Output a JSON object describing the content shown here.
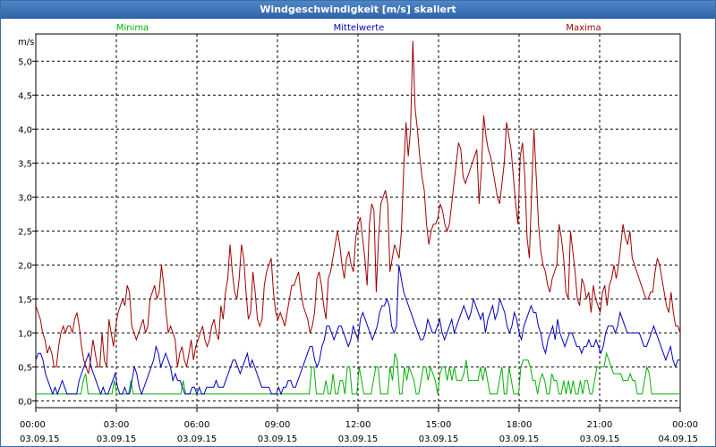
{
  "window": {
    "title": "Windgeschwindigkeit [m/s] skaliert"
  },
  "chart_data": {
    "type": "line",
    "title": "Windgeschwindigkeit [m/s] skaliert",
    "ylabel": "m/s",
    "ylim": [
      -0.1,
      5.4
    ],
    "yticks": [
      "0,0",
      "0,5",
      "1,0",
      "1,5",
      "2,0",
      "2,5",
      "3,0",
      "3,5",
      "4,0",
      "4,5",
      "5,0"
    ],
    "xticks": [
      {
        "time": "00:00",
        "date": "03.09.15"
      },
      {
        "time": "03:00",
        "date": "03.09.15"
      },
      {
        "time": "06:00",
        "date": "03.09.15"
      },
      {
        "time": "09:00",
        "date": "03.09.15"
      },
      {
        "time": "12:00",
        "date": "03.09.15"
      },
      {
        "time": "15:00",
        "date": "03.09.15"
      },
      {
        "time": "18:00",
        "date": "03.09.15"
      },
      {
        "time": "21:00",
        "date": "03.09.15"
      },
      {
        "time": "00:00",
        "date": "04.09.15"
      }
    ],
    "grid": true,
    "legend_position": "top",
    "x_start": "03.09.15 00:00",
    "x_step": "10 min",
    "series": [
      {
        "name": "Minima",
        "color": "#00b000",
        "values": [
          0.1,
          0.1,
          0.1,
          0.1,
          0.1,
          0.1,
          0.1,
          0.1,
          0.1,
          0.1,
          0.1,
          0.1,
          0.1,
          0.1,
          0.1,
          0.1,
          0.1,
          0.1,
          0.1,
          0.1,
          0.3,
          0.4,
          0.1,
          0.1,
          0.1,
          0.1,
          0.1,
          0.1,
          0.1,
          0.1,
          0.1,
          0.1,
          0.1,
          0.3,
          0.1,
          0.1,
          0.1,
          0.1,
          0.1,
          0.1,
          0.3,
          0.1,
          0.1,
          0.1,
          0.1,
          0.1,
          0.1,
          0.1,
          0.1,
          0.1,
          0.1,
          0.1,
          0.1,
          0.1,
          0.1,
          0.1,
          0.1,
          0.1,
          0.1,
          0.1,
          0.1,
          0.1,
          0.3,
          0.1,
          0.1,
          0.1,
          0.1,
          0.1,
          0.1,
          0.1,
          0.1,
          0.1,
          0.1,
          0.1,
          0.1,
          0.1,
          0.1,
          0.1,
          0.1,
          0.1,
          0.1,
          0.1,
          0.1,
          0.1,
          0.1,
          0.1,
          0.1,
          0.1,
          0.1,
          0.1,
          0.1,
          0.1,
          0.1,
          0.1,
          0.1,
          0.1,
          0.1,
          0.1,
          0.1,
          0.1,
          0.1,
          0.1,
          0.1,
          0.1,
          0.1,
          0.1,
          0.1,
          0.1,
          0.1,
          0.1,
          0.1,
          0.1,
          0.1,
          0.1,
          0.1,
          0.1,
          0.5,
          0.5,
          0.1,
          0.1,
          0.1,
          0.1,
          0.3,
          0.1,
          0.1,
          0.4,
          0.1,
          0.1,
          0.3,
          0.3,
          0.1,
          0.5,
          0.5,
          0.1,
          0.1,
          0.1,
          0.5,
          0.3,
          0.1,
          0.1,
          0.1,
          0.1,
          0.3,
          0.5,
          0.5,
          0.1,
          0.1,
          0.1,
          0.1,
          0.5,
          0.3,
          0.7,
          0.6,
          0.1,
          0.1,
          0.5,
          0.3,
          0.5,
          0.4,
          0.3,
          0.1,
          0.1,
          0.3,
          0.5,
          0.5,
          0.3,
          0.5,
          0.4,
          0.3,
          0.1,
          0.4,
          0.5,
          0.5,
          0.3,
          0.5,
          0.3,
          0.5,
          0.3,
          0.3,
          0.3,
          0.4,
          0.6,
          0.3,
          0.3,
          0.3,
          0.3,
          0.3,
          0.5,
          0.3,
          0.5,
          0.3,
          0.1,
          0.1,
          0.1,
          0.1,
          0.3,
          0.5,
          0.1,
          0.1,
          0.5,
          0.3,
          0.1,
          0.1,
          0.1,
          0.5,
          0.6,
          0.6,
          0.6,
          0.5,
          0.3,
          0.3,
          0.1,
          0.3,
          0.4,
          0.3,
          0.1,
          0.1,
          0.4,
          0.3,
          0.3,
          0.1,
          0.1,
          0.3,
          0.1,
          0.3,
          0.1,
          0.3,
          0.1,
          0.1,
          0.3,
          0.1,
          0.3,
          0.3,
          0.1,
          0.1,
          0.3,
          0.5,
          0.5,
          0.5,
          0.5,
          0.7,
          0.6,
          0.5,
          0.4,
          0.4,
          0.4,
          0.4,
          0.3,
          0.3,
          0.3,
          0.4,
          0.3,
          0.3,
          0.1,
          0.1,
          0.1,
          0.3,
          0.5,
          0.4,
          0.1,
          0.1,
          0.1,
          0.1,
          0.1,
          0.1,
          0.1,
          0.1,
          0.1,
          0.1,
          0.1,
          0.1,
          0.1
        ]
      },
      {
        "name": "Mittelwerte",
        "color": "#0000c0",
        "values": [
          0.6,
          0.7,
          0.7,
          0.6,
          0.4,
          0.3,
          0.2,
          0.1,
          0.2,
          0.1,
          0.2,
          0.3,
          0.2,
          0.1,
          0.1,
          0.1,
          0.1,
          0.1,
          0.3,
          0.4,
          0.5,
          0.6,
          0.7,
          0.5,
          0.4,
          0.3,
          0.2,
          0.1,
          0.2,
          0.1,
          0.1,
          0.2,
          0.3,
          0.4,
          0.2,
          0.1,
          0.1,
          0.2,
          0.1,
          0.1,
          0.3,
          0.5,
          0.4,
          0.2,
          0.1,
          0.2,
          0.3,
          0.4,
          0.5,
          0.6,
          0.8,
          0.7,
          0.5,
          0.6,
          0.7,
          0.6,
          0.5,
          0.3,
          0.4,
          0.3,
          0.3,
          0.2,
          0.1,
          0.1,
          0.1,
          0.2,
          0.2,
          0.1,
          0.2,
          0.1,
          0.1,
          0.2,
          0.2,
          0.2,
          0.2,
          0.3,
          0.2,
          0.2,
          0.2,
          0.3,
          0.4,
          0.5,
          0.6,
          0.6,
          0.5,
          0.4,
          0.5,
          0.6,
          0.7,
          0.5,
          0.6,
          0.5,
          0.4,
          0.3,
          0.2,
          0.2,
          0.2,
          0.2,
          0.1,
          0.1,
          0.1,
          0.2,
          0.1,
          0.2,
          0.2,
          0.3,
          0.3,
          0.2,
          0.2,
          0.3,
          0.4,
          0.5,
          0.6,
          0.7,
          0.8,
          0.8,
          0.6,
          0.5,
          0.6,
          0.8,
          0.9,
          1.1,
          1.1,
          1.0,
          0.9,
          1.0,
          1.1,
          1.1,
          1.0,
          0.9,
          0.8,
          0.9,
          1.1,
          1.0,
          0.9,
          1.2,
          1.3,
          1.2,
          1.1,
          1.0,
          0.9,
          1.0,
          1.1,
          1.3,
          1.4,
          1.4,
          1.5,
          1.4,
          1.1,
          1.0,
          1.1,
          2.0,
          1.8,
          1.6,
          1.5,
          1.4,
          1.3,
          1.2,
          1.1,
          1.0,
          0.9,
          0.9,
          1.0,
          1.2,
          1.1,
          1.0,
          1.0,
          1.1,
          1.2,
          1.0,
          0.9,
          1.0,
          1.1,
          1.2,
          1.0,
          1.1,
          1.2,
          1.3,
          1.4,
          1.3,
          1.2,
          1.3,
          1.5,
          1.4,
          1.3,
          1.2,
          1.3,
          1.0,
          1.2,
          1.3,
          1.4,
          1.2,
          1.3,
          1.5,
          1.4,
          1.3,
          1.1,
          1.0,
          1.1,
          1.3,
          1.2,
          1.0,
          0.9,
          1.1,
          1.2,
          1.3,
          1.4,
          1.3,
          1.3,
          1.1,
          1.0,
          0.8,
          0.7,
          0.9,
          1.0,
          1.1,
          0.9,
          1.2,
          1.0,
          0.9,
          0.8,
          0.9,
          1.0,
          1.0,
          0.9,
          0.8,
          0.8,
          0.7,
          0.8,
          0.8,
          0.9,
          0.8,
          0.8,
          0.9,
          0.8,
          0.7,
          0.8,
          1.0,
          1.1,
          1.1,
          1.1,
          1.0,
          1.1,
          1.3,
          1.2,
          1.1,
          1.0,
          1.0,
          1.0,
          1.0,
          1.0,
          1.0,
          0.9,
          0.8,
          0.8,
          0.9,
          1.0,
          1.1,
          1.0,
          0.9,
          0.8,
          0.7,
          0.6,
          0.7,
          0.8,
          0.6,
          0.5,
          0.6,
          0.6
        ]
      },
      {
        "name": "Maxima",
        "color": "#a00000",
        "values": [
          1.4,
          1.3,
          1.2,
          1.0,
          0.9,
          0.7,
          0.8,
          0.7,
          0.5,
          0.5,
          0.8,
          1.0,
          1.1,
          1.0,
          1.1,
          1.1,
          1.0,
          1.2,
          1.3,
          1.1,
          0.8,
          0.6,
          0.5,
          0.4,
          0.6,
          0.9,
          0.7,
          0.5,
          0.5,
          1.0,
          0.6,
          0.5,
          1.2,
          1.0,
          0.8,
          1.1,
          1.3,
          1.4,
          1.5,
          1.4,
          1.7,
          1.6,
          1.1,
          1.0,
          0.9,
          1.0,
          1.1,
          1.2,
          1.0,
          1.1,
          1.5,
          1.6,
          1.7,
          1.5,
          1.6,
          2.0,
          1.7,
          1.3,
          1.0,
          1.1,
          1.0,
          0.9,
          0.5,
          0.7,
          0.8,
          0.6,
          0.5,
          0.7,
          0.9,
          0.6,
          0.8,
          0.9,
          1.0,
          1.1,
          0.9,
          0.8,
          0.9,
          1.1,
          1.2,
          1.0,
          0.9,
          1.4,
          1.2,
          1.6,
          1.8,
          2.3,
          1.9,
          1.6,
          1.5,
          1.8,
          2.3,
          2.1,
          1.6,
          1.2,
          1.3,
          1.9,
          1.6,
          1.2,
          1.1,
          1.2,
          1.7,
          1.9,
          2.0,
          2.1,
          1.6,
          1.3,
          1.2,
          1.3,
          1.2,
          1.1,
          1.3,
          1.5,
          1.7,
          1.7,
          1.8,
          1.9,
          1.6,
          1.4,
          1.3,
          1.2,
          1.0,
          1.1,
          1.3,
          1.8,
          1.9,
          1.7,
          1.4,
          1.2,
          1.8,
          1.9,
          2.1,
          2.3,
          2.5,
          2.3,
          2.0,
          1.8,
          2.1,
          2.2,
          2.0,
          1.9,
          2.4,
          2.6,
          2.7,
          2.4,
          2.1,
          1.7,
          2.6,
          2.9,
          2.8,
          1.6,
          2.4,
          2.9,
          3.0,
          3.1,
          2.9,
          1.9,
          2.1,
          2.3,
          2.2,
          2.1,
          2.5,
          3.4,
          4.1,
          3.6,
          4.0,
          5.3,
          4.3,
          4.0,
          3.6,
          3.3,
          3.1,
          2.6,
          2.3,
          2.5,
          2.6,
          2.6,
          2.7,
          2.9,
          2.8,
          2.6,
          2.5,
          2.6,
          2.9,
          3.2,
          3.5,
          3.8,
          3.7,
          3.3,
          3.2,
          3.3,
          3.4,
          3.5,
          3.6,
          3.7,
          2.9,
          3.4,
          4.2,
          3.9,
          3.7,
          3.6,
          3.4,
          3.2,
          3.0,
          2.9,
          3.2,
          3.5,
          4.1,
          3.9,
          3.7,
          3.3,
          2.9,
          2.6,
          3.6,
          3.8,
          3.3,
          2.4,
          2.1,
          3.1,
          4.0,
          3.3,
          2.6,
          2.2,
          2.0,
          1.9,
          1.7,
          1.6,
          1.8,
          1.9,
          2.0,
          2.6,
          2.4,
          2.1,
          1.6,
          1.5,
          2.5,
          2.2,
          1.9,
          1.5,
          1.4,
          1.8,
          1.7,
          1.5,
          1.6,
          1.3,
          1.7,
          1.5,
          1.4,
          1.3,
          1.6,
          1.7,
          1.4,
          1.7,
          1.8,
          2.0,
          1.8,
          2.0,
          2.3,
          2.6,
          2.4,
          2.3,
          2.5,
          2.1,
          2.0,
          1.9,
          1.8,
          1.7,
          1.6,
          1.5,
          1.5,
          1.6,
          1.6,
          1.9,
          2.1,
          2.0,
          1.8,
          1.6,
          1.4,
          1.3,
          1.6,
          1.3,
          1.1,
          1.1,
          1.0
        ]
      }
    ]
  }
}
